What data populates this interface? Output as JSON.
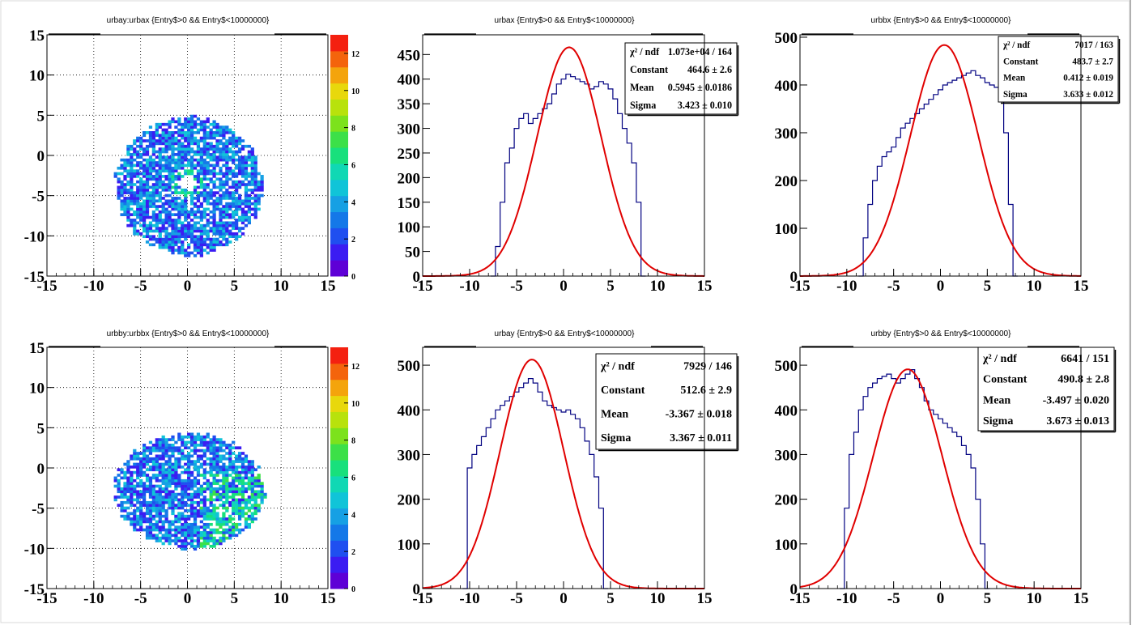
{
  "colors": {
    "histogram_line": "#000080",
    "fit_line": "#e00000",
    "grid": "#000000",
    "palette": [
      "#5e00d6",
      "#3b1cf2",
      "#1f4ff0",
      "#1478e8",
      "#16a0e4",
      "#10c4d8",
      "#10d8b4",
      "#18e07c",
      "#3ce048",
      "#7ce21c",
      "#b8e20c",
      "#e8d80c",
      "#f4a40c",
      "#f4640c",
      "#f42010"
    ]
  },
  "chart_data": [
    {
      "type": "heatmap",
      "title": "urbay:urbax {Entry$>0 && Entry$<10000000}",
      "xlim": [
        -15,
        15
      ],
      "ylim": [
        -15,
        15
      ],
      "x_ticks": [
        -15,
        -10,
        -5,
        0,
        5,
        10,
        15
      ],
      "y_ticks": [
        -15,
        -10,
        -5,
        0,
        5,
        10,
        15
      ],
      "grid": true,
      "colorbar": {
        "range": [
          0,
          13
        ],
        "ticks": [
          0,
          2,
          4,
          6,
          8,
          10,
          12
        ]
      },
      "blob": {
        "center": [
          0,
          -4
        ],
        "radius_x": 7.8,
        "radius_y": 8.6,
        "hole": [
          -0.2,
          -3.5
        ],
        "hole_radius": 0.9
      }
    },
    {
      "type": "histogram",
      "title": "urbax {Entry$>0 && Entry$<10000000}",
      "xlim": [
        -15,
        15
      ],
      "ylim": [
        0,
        490
      ],
      "x_ticks": [
        -15,
        -10,
        -5,
        0,
        5,
        10,
        15
      ],
      "y_ticks": [
        0,
        50,
        100,
        150,
        200,
        250,
        300,
        350,
        400,
        450
      ],
      "grid": false,
      "histogram": {
        "x": [
          -7.5,
          -7,
          -6.5,
          -6,
          -5.5,
          -5,
          -4.5,
          -4,
          -3.5,
          -3,
          -2.5,
          -2,
          -1.5,
          -1,
          -0.5,
          0,
          0.5,
          1,
          1.5,
          2,
          2.5,
          3,
          3.5,
          4,
          4.5,
          5,
          5.5,
          6,
          6.5,
          7,
          7.5,
          8,
          8.5
        ],
        "y": [
          0,
          60,
          150,
          230,
          260,
          300,
          320,
          330,
          310,
          320,
          330,
          340,
          350,
          370,
          390,
          400,
          410,
          405,
          400,
          395,
          390,
          380,
          385,
          395,
          390,
          380,
          360,
          330,
          300,
          270,
          230,
          150,
          0
        ]
      },
      "fit": {
        "constant": 464.6,
        "mean": 0.5945,
        "sigma": 3.423
      },
      "stats": [
        {
          "label": "χ² / ndf",
          "value": "1.073e+04 / 164"
        },
        {
          "label": "Constant",
          "value": "464.6 ± 2.6"
        },
        {
          "label": "Mean",
          "value": "0.5945 ± 0.0186"
        },
        {
          "label": "Sigma",
          "value": "3.423 ± 0.010"
        }
      ]
    },
    {
      "type": "histogram",
      "title": "urbbx {Entry$>0 && Entry$<10000000}",
      "xlim": [
        -15,
        15
      ],
      "ylim": [
        0,
        505
      ],
      "x_ticks": [
        -15,
        -10,
        -5,
        0,
        5,
        10,
        15
      ],
      "y_ticks": [
        0,
        100,
        200,
        300,
        400,
        500
      ],
      "grid": false,
      "histogram": {
        "x": [
          -8.5,
          -8,
          -7.5,
          -7,
          -6.5,
          -6,
          -5.5,
          -5,
          -4.5,
          -4,
          -3.5,
          -3,
          -2.5,
          -2,
          -1.5,
          -1,
          -0.5,
          0,
          0.5,
          1,
          1.5,
          2,
          2.5,
          3,
          3.5,
          4,
          4.5,
          5,
          5.5,
          6,
          6.5,
          7,
          7.5,
          8
        ],
        "y": [
          0,
          80,
          150,
          200,
          230,
          250,
          260,
          270,
          290,
          310,
          320,
          330,
          340,
          350,
          360,
          370,
          380,
          390,
          400,
          405,
          410,
          415,
          420,
          425,
          430,
          420,
          415,
          405,
          400,
          395,
          380,
          300,
          150,
          0
        ]
      },
      "fit": {
        "constant": 483.7,
        "mean": 0.412,
        "sigma": 3.633
      },
      "stats": [
        {
          "label": "χ² / ndf",
          "value": "7017 / 163"
        },
        {
          "label": "Constant",
          "value": "483.7 ± 2.7"
        },
        {
          "label": "Mean",
          "value": "0.412 ± 0.019"
        },
        {
          "label": "Sigma",
          "value": "3.633 ± 0.012"
        }
      ]
    },
    {
      "type": "heatmap",
      "title": "urbby:urbbx {Entry$>0 && Entry$<10000000}",
      "xlim": [
        -15,
        15
      ],
      "ylim": [
        -15,
        15
      ],
      "x_ticks": [
        -15,
        -10,
        -5,
        0,
        5,
        10,
        15
      ],
      "y_ticks": [
        -15,
        -10,
        -5,
        0,
        5,
        10,
        15
      ],
      "grid": true,
      "colorbar": {
        "range": [
          0,
          13
        ],
        "ticks": [
          0,
          2,
          4,
          6,
          8,
          10,
          12
        ]
      },
      "blob": {
        "center": [
          0,
          -3
        ],
        "radius_x": 8.0,
        "radius_y": 7.2,
        "hole": null,
        "hole_radius": 0
      }
    },
    {
      "type": "histogram",
      "title": "urbay {Entry$>0 && Entry$<10000000}",
      "xlim": [
        -15,
        15
      ],
      "ylim": [
        0,
        540
      ],
      "x_ticks": [
        -15,
        -10,
        -5,
        0,
        5,
        10,
        15
      ],
      "y_ticks": [
        0,
        100,
        200,
        300,
        400,
        500
      ],
      "grid": false,
      "histogram": {
        "x": [
          -10.5,
          -10,
          -9.5,
          -9,
          -8.5,
          -8,
          -7.5,
          -7,
          -6.5,
          -6,
          -5.5,
          -5,
          -4.5,
          -4,
          -3.5,
          -3,
          -2.5,
          -2,
          -1.5,
          -1,
          -0.5,
          0,
          0.5,
          1,
          1.5,
          2,
          2.5,
          3,
          3.5,
          4,
          4.5
        ],
        "y": [
          0,
          270,
          300,
          320,
          340,
          360,
          380,
          400,
          410,
          420,
          430,
          440,
          450,
          460,
          470,
          460,
          440,
          420,
          410,
          405,
          400,
          395,
          400,
          390,
          380,
          360,
          330,
          300,
          250,
          180,
          0
        ]
      },
      "fit": {
        "constant": 512.6,
        "mean": -3.367,
        "sigma": 3.367
      },
      "stats": [
        {
          "label": "χ² / ndf",
          "value": "7929 / 146"
        },
        {
          "label": "Constant",
          "value": "512.6 ± 2.9"
        },
        {
          "label": "Mean",
          "value": "-3.367 ± 0.018"
        },
        {
          "label": "Sigma",
          "value": "3.367 ± 0.011"
        }
      ]
    },
    {
      "type": "histogram",
      "title": "urbby {Entry$>0 && Entry$<10000000}",
      "xlim": [
        -15,
        15
      ],
      "ylim": [
        0,
        540
      ],
      "x_ticks": [
        -15,
        -10,
        -5,
        0,
        5,
        10,
        15
      ],
      "y_ticks": [
        0,
        100,
        200,
        300,
        400,
        500
      ],
      "grid": false,
      "histogram": {
        "x": [
          -10.5,
          -10,
          -9.5,
          -9,
          -8.5,
          -8,
          -7.5,
          -7,
          -6.5,
          -6,
          -5.5,
          -5,
          -4.5,
          -4,
          -3.5,
          -3,
          -2.5,
          -2,
          -1.5,
          -1,
          -0.5,
          0,
          0.5,
          1,
          1.5,
          2,
          2.5,
          3,
          3.5,
          4,
          4.5,
          5
        ],
        "y": [
          0,
          180,
          300,
          350,
          400,
          430,
          450,
          460,
          470,
          475,
          480,
          470,
          460,
          470,
          480,
          490,
          470,
          450,
          420,
          400,
          390,
          380,
          370,
          360,
          350,
          340,
          320,
          300,
          270,
          200,
          100,
          0
        ]
      },
      "fit": {
        "constant": 490.8,
        "mean": -3.497,
        "sigma": 3.673
      },
      "stats": [
        {
          "label": "χ² / ndf",
          "value": "6641 / 151"
        },
        {
          "label": "Constant",
          "value": "490.8 ± 2.8"
        },
        {
          "label": "Mean",
          "value": "-3.497 ± 0.020"
        },
        {
          "label": "Sigma",
          "value": "3.673 ± 0.013"
        }
      ]
    }
  ]
}
